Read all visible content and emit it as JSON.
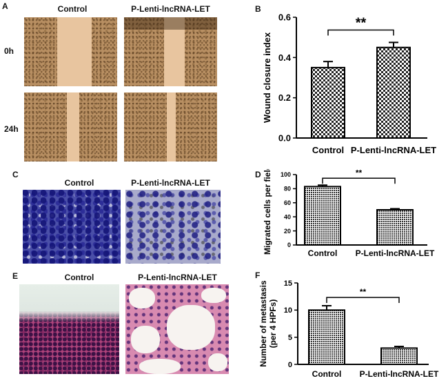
{
  "panels": {
    "A": {
      "letter": "A",
      "col_labels": [
        "Control",
        "P-Lenti-lncRNA-LET"
      ],
      "row_labels": [
        "0h",
        "24h"
      ]
    },
    "C": {
      "letter": "C",
      "col_labels": [
        "Control",
        "P-Lenti-lncRNA-LET"
      ]
    },
    "E": {
      "letter": "E",
      "col_labels": [
        "Control",
        "P-Lenti-lncRNA-LET"
      ]
    },
    "B": {
      "letter": "B"
    },
    "D": {
      "letter": "D"
    },
    "F": {
      "letter": "F"
    }
  },
  "colors": {
    "bar_edge": "#000000",
    "wound": "#e8c59f",
    "cells": "#b88f62",
    "crystal": "#4a4fa8",
    "he_stain": "#b0447c"
  },
  "chart_data": [
    {
      "id": "B",
      "type": "bar",
      "categories": [
        "Control",
        "P-Lenti-lncRNA-LET"
      ],
      "values": [
        0.35,
        0.45
      ],
      "errors": [
        0.03,
        0.025
      ],
      "ylabel": "Wound closure index",
      "ylim": [
        0,
        0.6
      ],
      "yticks": [
        "0.0",
        "0.2",
        "0.4",
        "0.6"
      ],
      "significance": "**",
      "grid": false,
      "pattern": "checker"
    },
    {
      "id": "D",
      "type": "bar",
      "categories": [
        "Control",
        "P-Lenti-lncRNA-LET"
      ],
      "values": [
        83,
        50
      ],
      "errors": [
        2,
        1.5
      ],
      "ylabel": "Migrated cells per field",
      "ylim": [
        0,
        100
      ],
      "yticks": [
        "0",
        "20",
        "40",
        "60",
        "80",
        "100"
      ],
      "significance": "**",
      "grid": false,
      "pattern": "dots"
    },
    {
      "id": "F",
      "type": "bar",
      "categories": [
        "Control",
        "P-Lenti-lncRNA-LET"
      ],
      "values": [
        10,
        3
      ],
      "errors": [
        0.8,
        0.3
      ],
      "ylabel": "Number of  metastasis (per 4 HPFs)",
      "ylim": [
        0,
        15
      ],
      "yticks": [
        "0",
        "5",
        "10",
        "15"
      ],
      "significance": "**",
      "grid": false,
      "pattern": "dots"
    }
  ]
}
